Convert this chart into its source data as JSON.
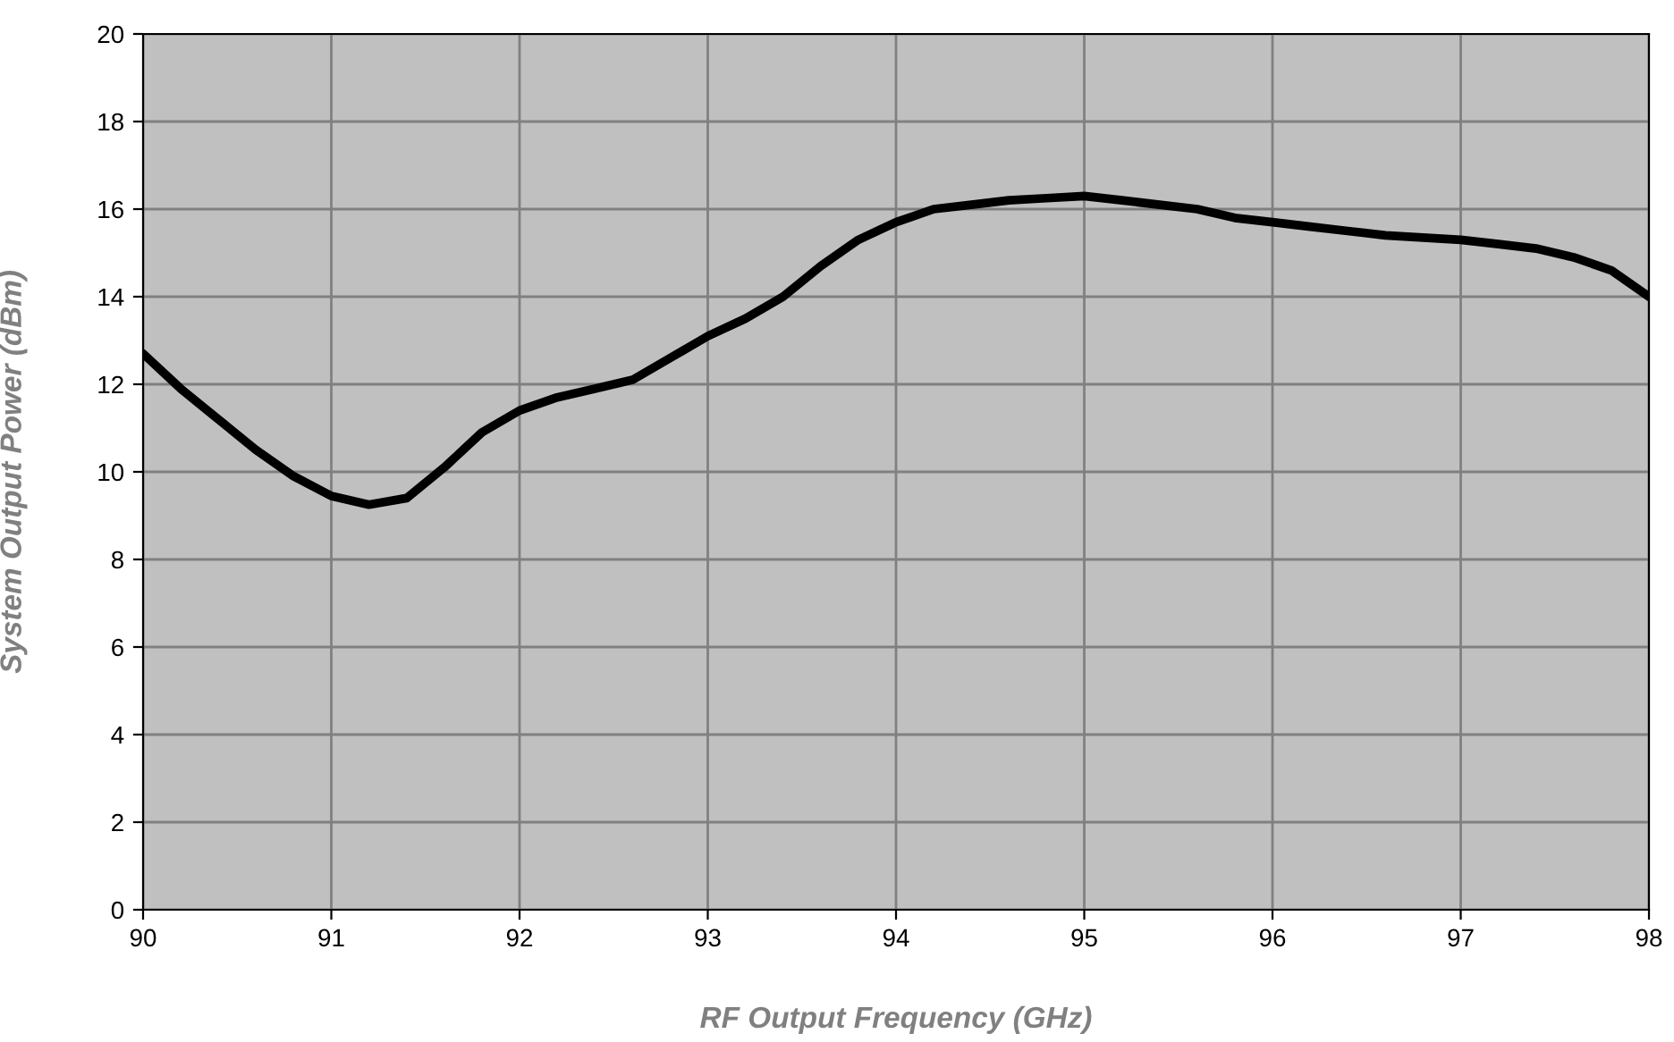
{
  "chart_data": {
    "type": "line",
    "xlabel": "RF Output Frequency (GHz)",
    "ylabel": "System Output Power (dBm)",
    "x": [
      90.0,
      90.2,
      90.4,
      90.6,
      90.8,
      91.0,
      91.2,
      91.4,
      91.6,
      91.8,
      92.0,
      92.2,
      92.4,
      92.6,
      92.8,
      93.0,
      93.2,
      93.4,
      93.6,
      93.8,
      94.0,
      94.2,
      94.4,
      94.6,
      94.8,
      95.0,
      95.2,
      95.4,
      95.6,
      95.8,
      96.0,
      96.2,
      96.4,
      96.6,
      96.8,
      97.0,
      97.2,
      97.4,
      97.6,
      97.8,
      98.0
    ],
    "series": [
      {
        "color": "#000000",
        "values": [
          12.7,
          11.9,
          11.2,
          10.5,
          9.9,
          9.45,
          9.25,
          9.4,
          10.1,
          10.9,
          11.4,
          11.7,
          11.9,
          12.1,
          12.6,
          13.1,
          13.5,
          14.0,
          14.7,
          15.3,
          15.7,
          16.0,
          16.1,
          16.2,
          16.25,
          16.3,
          16.2,
          16.1,
          16.0,
          15.8,
          15.7,
          15.6,
          15.5,
          15.4,
          15.35,
          15.3,
          15.2,
          15.1,
          14.9,
          14.6,
          14.0
        ]
      }
    ],
    "xlim": [
      90,
      98
    ],
    "xticks": [
      90,
      91,
      92,
      93,
      94,
      95,
      96,
      97,
      98
    ],
    "ylim": [
      0,
      20
    ],
    "yticks": [
      0,
      2,
      4,
      6,
      8,
      10,
      12,
      14,
      16,
      18,
      20
    ],
    "grid": true,
    "legend": false,
    "marker": "none",
    "line_style": "solid"
  }
}
